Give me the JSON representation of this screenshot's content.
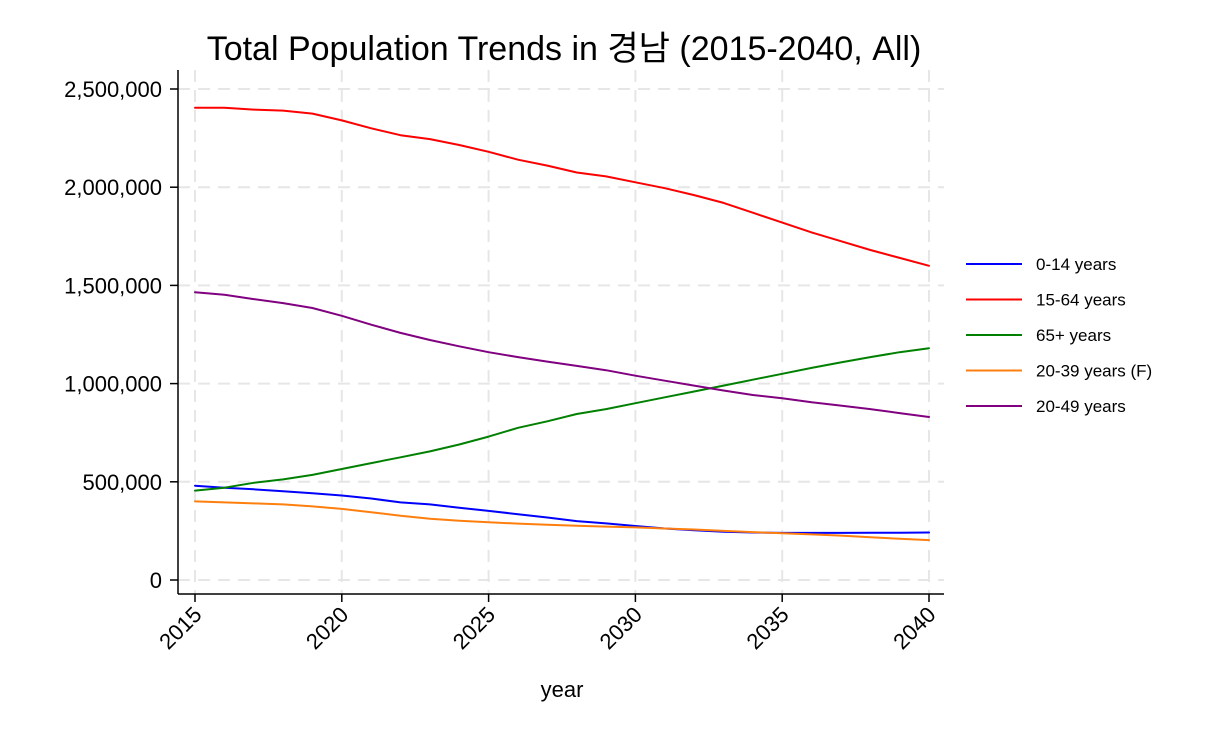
{
  "chart_data": {
    "type": "line",
    "title": "Total Population Trends in 경남 (2015-2040, All)",
    "xlabel": "year",
    "ylabel": "",
    "xlim": [
      2015,
      2040
    ],
    "ylim": [
      0,
      2600000
    ],
    "grid": true,
    "legend_position": "right",
    "x_ticks": [
      2015,
      2020,
      2025,
      2030,
      2035,
      2040
    ],
    "x_tick_labels": [
      "2015",
      "2020",
      "2025",
      "2030",
      "2035",
      "2040"
    ],
    "y_ticks": [
      0,
      500000,
      1000000,
      1500000,
      2000000,
      2500000
    ],
    "y_tick_labels": [
      "0",
      "500,000",
      "1,000,000",
      "1,500,000",
      "2,000,000",
      "2,500,000"
    ],
    "x": [
      2015,
      2016,
      2017,
      2018,
      2019,
      2020,
      2021,
      2022,
      2023,
      2024,
      2025,
      2026,
      2027,
      2028,
      2029,
      2030,
      2031,
      2032,
      2033,
      2034,
      2035,
      2036,
      2037,
      2038,
      2039,
      2040
    ],
    "series": [
      {
        "name": "0-14 years",
        "color": "#0000ff",
        "values": [
          480000,
          470000,
          462000,
          452000,
          442000,
          430000,
          415000,
          395000,
          385000,
          368000,
          352000,
          335000,
          318000,
          300000,
          288000,
          275000,
          262000,
          253000,
          246000,
          242000,
          240000,
          240000,
          240000,
          241000,
          241000,
          242000
        ]
      },
      {
        "name": "15-64 years",
        "color": "#ff0000",
        "values": [
          2405000,
          2405000,
          2395000,
          2390000,
          2375000,
          2340000,
          2300000,
          2265000,
          2245000,
          2215000,
          2180000,
          2140000,
          2110000,
          2075000,
          2055000,
          2025000,
          1995000,
          1960000,
          1920000,
          1870000,
          1820000,
          1770000,
          1725000,
          1680000,
          1640000,
          1600000
        ]
      },
      {
        "name": "65+ years",
        "color": "#008000",
        "values": [
          455000,
          470000,
          495000,
          512000,
          535000,
          565000,
          595000,
          625000,
          655000,
          690000,
          730000,
          775000,
          808000,
          845000,
          870000,
          900000,
          930000,
          960000,
          990000,
          1020000,
          1050000,
          1080000,
          1108000,
          1135000,
          1160000,
          1180000
        ]
      },
      {
        "name": "20-39 years (F)",
        "color": "#ff7f0e",
        "values": [
          400000,
          395000,
          390000,
          385000,
          375000,
          362000,
          345000,
          327000,
          312000,
          302000,
          294000,
          287000,
          281000,
          276000,
          272000,
          268000,
          262000,
          257000,
          250000,
          244000,
          238000,
          232000,
          226000,
          218000,
          210000,
          203000
        ]
      },
      {
        "name": "20-49 years",
        "color": "#800080",
        "values": [
          1465000,
          1452000,
          1430000,
          1410000,
          1385000,
          1345000,
          1300000,
          1258000,
          1222000,
          1190000,
          1160000,
          1135000,
          1112000,
          1090000,
          1068000,
          1040000,
          1015000,
          990000,
          965000,
          942000,
          925000,
          905000,
          888000,
          870000,
          850000,
          830000
        ]
      }
    ]
  }
}
